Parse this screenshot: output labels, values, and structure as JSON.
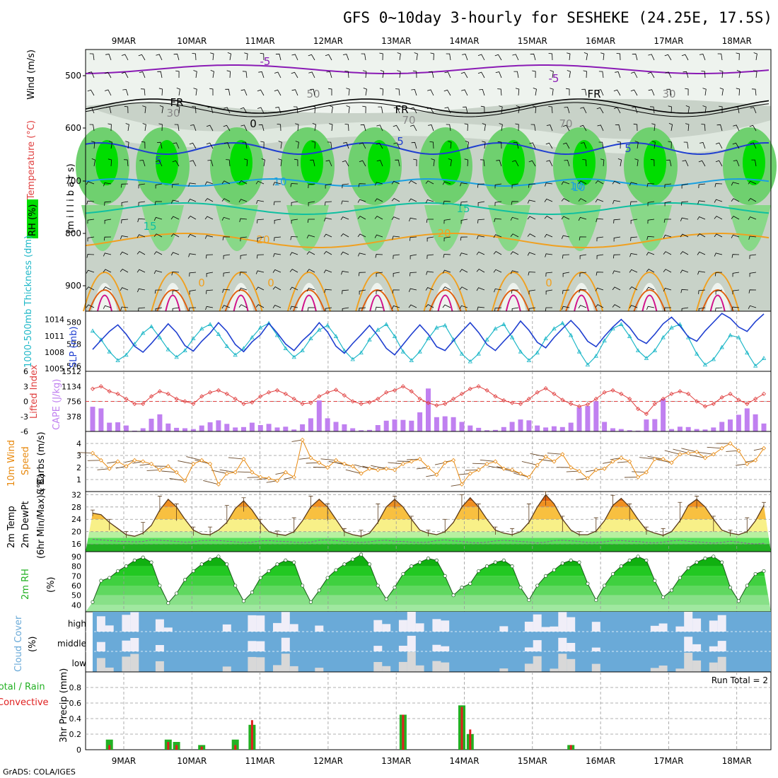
{
  "title": "GFS 0~10day 3-hourly for SESHEKE (24.25E, 17.5S)",
  "footer": "GrADS: COLA/IGES",
  "date_labels": [
    "9MAR",
    "10MAR",
    "11MAR",
    "12MAR",
    "13MAR",
    "14MAR",
    "15MAR",
    "16MAR",
    "17MAR",
    "18MAR"
  ],
  "colors": {
    "rh_green": "#00dd00",
    "rh_grey": "#c8d2c8",
    "slp": "#1f3fd0",
    "thickness": "#20b8c8",
    "lifted": "#e04040",
    "cape": "#c080f0",
    "wind_speed": "#e88a10",
    "temp_fill": "#f0a020",
    "cloud": "#6aaad8",
    "rain": "#e02020",
    "precip": "#22b022"
  },
  "panels": {
    "profile": {
      "labels": {
        "wind": "Wind (m/s)",
        "temperature": "Temperature (°C)",
        "rh": "RH (%)",
        "pressure": "(m i l l i b a r s)"
      },
      "y_ticks": [
        "500",
        "600",
        "700",
        "800",
        "900"
      ],
      "contour_labels": [
        "-5",
        "FR",
        "FR",
        "0",
        "5",
        "5",
        "10",
        "10",
        "15",
        "15",
        "20",
        "20",
        "-5",
        "FR",
        "5",
        "10",
        "0",
        "0",
        "0",
        "30",
        "50",
        "30",
        "70",
        "70"
      ]
    },
    "slp_thickness": {
      "labels": {
        "thickness": "1000-500mb Thickness (dm)",
        "slp": "SLP (mb)"
      },
      "left_ticks": [
        "580",
        "578",
        "576"
      ],
      "right_ticks": [
        "1014",
        "1011",
        "1008",
        "1005"
      ]
    },
    "lifted_cape": {
      "labels": {
        "lifted": "Lifted Index",
        "cape": "CAPE (J/kg)"
      },
      "left_ticks": [
        "-6",
        "-3",
        "0",
        "3",
        "6"
      ],
      "right_ticks": [
        "1512",
        "1134",
        "756",
        "378"
      ]
    },
    "wind10m": {
      "labels": {
        "title": "10m Wind",
        "speed": "Speed",
        "barbs": "& Barbs (m/s)"
      },
      "y_ticks": [
        "4",
        "3",
        "2",
        "1"
      ]
    },
    "temp2m": {
      "labels": {
        "temp": "2m Temp",
        "dewpt": "2m DewPt",
        "minmax": "(6hr Min/Max) (°C)"
      },
      "y_ticks": [
        "32",
        "28",
        "24",
        "20",
        "16"
      ]
    },
    "rh2m": {
      "labels": {
        "rh": "2m RH",
        "unit": "(%)"
      },
      "y_ticks": [
        "90",
        "80",
        "70",
        "60",
        "50",
        "40"
      ]
    },
    "cloud": {
      "labels": {
        "title": "Cloud Cover",
        "unit": "(%)"
      },
      "levels": [
        "high",
        "middle",
        "low"
      ]
    },
    "precip": {
      "labels": {
        "total": "Total / Rain",
        "convective": "Convective",
        "axis": "3hr Precip (mm)"
      },
      "y_ticks": [
        "0.8",
        "0.6",
        "0.4",
        "0.2",
        "0"
      ],
      "run_total": "Run Total = 2"
    }
  },
  "chart_data": [
    {
      "type": "line",
      "name": "SLP and 1000-500mb thickness",
      "ylabel": "SLP (mb)",
      "ylim": [
        1004,
        1016
      ],
      "series": [
        {
          "name": "SLP (mb)",
          "values": [
            1008.5,
            1010.2,
            1011.8,
            1013,
            1011.3,
            1009.1,
            1008,
            1009.6,
            1011.4,
            1013.2,
            1011.6,
            1009.2,
            1008.2,
            1010,
            1011.5,
            1013.4,
            1011.8,
            1009.4,
            1008.1,
            1009.9,
            1011.2,
            1013.3,
            1011.5,
            1009.5,
            1008.3,
            1010.1,
            1011.5,
            1013.4,
            1011.7,
            1009.1,
            1007.8,
            1009.6,
            1011.2,
            1012.9,
            1011,
            1008.7,
            1007.5,
            1009.4,
            1011.3,
            1013,
            1011.3,
            1009,
            1008.3,
            1010.1,
            1011.8,
            1013.4,
            1011.6,
            1009.4,
            1008.3,
            1010,
            1011.6,
            1013.7,
            1012,
            1009.8,
            1008.8,
            1010.7,
            1012.3,
            1013.8,
            1012.2,
            1010,
            1009,
            1010.9,
            1012.6,
            1014,
            1012.5,
            1010.4,
            1009.6,
            1011.3,
            1013.2,
            1014.4,
            1012.8,
            1010.8,
            1010,
            1011.9,
            1013.5,
            1015.1,
            1014.2,
            1012.6,
            1011.8,
            1013.6,
            1015
          ]
        },
        {
          "name": "1000-500mb Thickness (dm)",
          "values": [
            579.2,
            578.4,
            577.3,
            576.5,
            577,
            578,
            579,
            579.6,
            578.6,
            577.5,
            576.8,
            577.4,
            578.5,
            579.4,
            579.8,
            578.9,
            577.8,
            577,
            577.6,
            578.6,
            579.5,
            579.9,
            578.8,
            577.6,
            576.8,
            577.4,
            578.5,
            579.3,
            579.7,
            578.7,
            577.4,
            576.6,
            577.2,
            578.4,
            579.3,
            579.8,
            578.7,
            577.3,
            576.5,
            577.3,
            578.5,
            579.5,
            579.7,
            578.4,
            577.1,
            576.4,
            577.1,
            578.4,
            579.4,
            579.8,
            578.6,
            577.3,
            576.5,
            577.2,
            578.5,
            579.4,
            579.9,
            578.8,
            577.3,
            576.1,
            576.9,
            578.3,
            579.4,
            579.8,
            578.7,
            577.4,
            576.7,
            577.4,
            578.6,
            579.5,
            579.8,
            578.6,
            577.1,
            576.1,
            576.6,
            577.7,
            578.8,
            578.6,
            577.2,
            576,
            576.7
          ]
        }
      ]
    },
    {
      "type": "bar",
      "name": "Lifted index and CAPE",
      "ylabel": "CAPE (J/kg)",
      "ylim": [
        0,
        1512
      ],
      "series": [
        {
          "name": "CAPE (J/kg)",
          "values": [
            620,
            580,
            220,
            230,
            150,
            20,
            80,
            320,
            430,
            200,
            90,
            80,
            60,
            150,
            230,
            280,
            190,
            100,
            110,
            220,
            160,
            190,
            100,
            120,
            50,
            180,
            330,
            780,
            330,
            240,
            180,
            80,
            30,
            40,
            160,
            270,
            300,
            290,
            270,
            480,
            1080,
            360,
            380,
            360,
            240,
            150,
            90,
            30,
            40,
            110,
            240,
            300,
            280,
            150,
            100,
            130,
            110,
            220,
            610,
            640,
            760,
            240,
            80,
            60,
            30,
            20,
            300,
            310,
            820,
            60,
            120,
            110,
            60,
            50,
            100,
            240,
            300,
            420,
            580,
            430,
            200
          ]
        },
        {
          "name": "Lifted Index",
          "values": [
            -2.5,
            -3,
            -2,
            -1.5,
            -0.5,
            0.5,
            0.5,
            -1,
            -2,
            -1.5,
            -0.5,
            0,
            0.5,
            -1,
            -1.8,
            -2.2,
            -1.5,
            -0.5,
            0.5,
            0.2,
            -1,
            -1.8,
            -2.2,
            -1.5,
            -0.5,
            0.5,
            0.3,
            -1,
            -1.8,
            -2.3,
            -1.2,
            0,
            0.5,
            0.2,
            -0.5,
            -1.8,
            -2.2,
            -3,
            -2,
            -0.5,
            0.3,
            0.8,
            0.5,
            -0.5,
            -1.5,
            -2.5,
            -3,
            -2.2,
            -1,
            -0.2,
            0.3,
            0.5,
            -0.5,
            -1.8,
            -2.6,
            -1.5,
            -0.3,
            0.5,
            1,
            0.6,
            -0.5,
            -1.8,
            -2.2,
            -1.5,
            -0.5,
            1.5,
            2.5,
            0.5,
            -0.5,
            -1.5,
            -2,
            -1.5,
            0,
            1,
            0.5,
            -0.8,
            -1.5,
            -0.3,
            0.5,
            -0.5,
            -1.5
          ]
        }
      ]
    },
    {
      "type": "line",
      "name": "10m wind speed",
      "ylabel": "Speed (m/s)",
      "ylim": [
        0,
        5
      ],
      "series": [
        {
          "name": "Speed",
          "values": [
            3.2,
            2.6,
            1.9,
            2.5,
            2.1,
            2.6,
            2.5,
            2.3,
            1.8,
            2.1,
            1.6,
            0.9,
            2.3,
            2.6,
            2.3,
            0.6,
            1.5,
            1.6,
            2.7,
            1.6,
            1.2,
            1.1,
            0.9,
            1.6,
            1.2,
            4.3,
            2.8,
            2.4,
            2.0,
            2.6,
            2.3,
            2.1,
            1.5,
            1.9,
            1.8,
            1.9,
            1.8,
            2.3,
            2.5,
            2.7,
            2.0,
            1.4,
            2.4,
            2.6,
            0.6,
            1.5,
            1.8,
            2.3,
            2.5,
            1.9,
            1.8,
            1.5,
            1.2,
            2.2,
            2.9,
            2.5,
            3.1,
            2.0,
            1.7,
            1.1,
            1.8,
            1.9,
            2.5,
            2.8,
            2.5,
            1.2,
            1.6,
            2.7,
            2.7,
            2.4,
            3.1,
            3.2,
            3.3,
            2.8,
            3.1,
            3.6,
            4.0,
            3.4,
            2.3,
            2.6,
            3.6
          ]
        }
      ]
    },
    {
      "type": "area",
      "name": "2m temperature",
      "ylabel": "(°C)",
      "ylim": [
        14,
        33
      ],
      "series": [
        {
          "name": "2m Temp",
          "values": [
            26,
            25.5,
            23,
            21,
            19,
            18.5,
            19.5,
            22,
            27,
            30.5,
            28,
            24,
            20.5,
            19.2,
            19,
            20.5,
            23,
            27.5,
            30,
            27,
            23,
            20,
            19.2,
            18.8,
            20,
            23.5,
            28,
            30.5,
            28,
            24,
            20,
            19,
            18.5,
            19.5,
            23,
            28,
            30.5,
            28,
            24,
            20.5,
            19.5,
            19,
            20,
            23,
            28,
            31,
            28,
            24,
            20.5,
            19.5,
            19,
            20,
            23,
            28,
            32,
            29,
            24,
            20.5,
            19,
            19,
            20.2,
            23.5,
            28.5,
            30.8,
            28,
            24,
            20.5,
            19.5,
            18.8,
            20,
            23.5,
            28.5,
            30.5,
            28,
            24,
            20.5,
            19.5,
            19,
            20,
            23.5,
            28.5
          ]
        },
        {
          "name": "2m DewPt",
          "values": [
            17.5,
            17.3,
            17.1,
            16.9,
            16.8,
            16.7,
            16.8,
            17.3,
            17.2,
            17,
            16.8,
            16.6,
            16.7,
            17.1,
            17.2,
            17.1,
            16.9,
            16.7,
            16.5,
            16.6,
            17,
            17.1,
            16.9,
            16.8,
            16.6,
            16.5,
            16.6,
            17.2,
            17.3,
            17.1,
            16.8,
            16.6,
            16.5,
            16.7,
            17.1,
            17.2,
            16.9,
            16.8,
            16.6,
            16.5,
            16.6,
            17.1,
            17.3,
            17,
            16.8,
            16.5,
            16.4,
            16.6,
            17,
            17.2,
            17,
            16.8,
            16.6,
            16.4,
            16.6,
            17.1,
            17.2,
            17,
            16.8,
            16.5,
            16.5,
            16.7,
            17.1,
            17.1,
            16.9,
            16.8,
            16.5,
            16.4,
            16.6,
            17,
            17.2,
            16.9,
            16.7,
            16.5,
            16.3,
            16.5,
            16.9,
            16.6,
            16.2,
            16,
            16.2
          ]
        }
      ]
    },
    {
      "type": "area",
      "name": "2m relative humidity",
      "ylabel": "(%)",
      "ylim": [
        35,
        95
      ],
      "series": [
        {
          "name": "2m RH",
          "values": [
            43,
            65,
            68,
            75,
            80,
            86,
            89,
            84,
            60,
            42,
            52,
            66,
            75,
            82,
            87,
            90,
            82,
            60,
            44,
            53,
            68,
            75,
            82,
            86,
            84,
            60,
            43,
            55,
            68,
            76,
            82,
            87,
            92,
            82,
            60,
            46,
            58,
            72,
            80,
            84,
            88,
            86,
            70,
            50,
            58,
            62,
            75,
            80,
            84,
            86,
            80,
            58,
            45,
            60,
            70,
            76,
            83,
            86,
            84,
            62,
            45,
            60,
            72,
            80,
            86,
            90,
            86,
            65,
            48,
            55,
            68,
            78,
            84,
            88,
            90,
            84,
            58,
            44,
            60,
            72,
            75
          ]
        }
      ]
    },
    {
      "type": "bar",
      "name": "3hr precipitation",
      "ylabel": "3hr Precip (mm)",
      "ylim": [
        0,
        1
      ],
      "series": [
        {
          "name": "Total / Rain",
          "values": [
            0,
            0,
            0.13,
            0,
            0,
            0,
            0,
            0,
            0,
            0.13,
            0.1,
            0,
            0,
            0.06,
            0,
            0,
            0,
            0.13,
            0,
            0.32,
            0,
            0,
            0,
            0,
            0,
            0,
            0,
            0,
            0,
            0,
            0,
            0,
            0,
            0,
            0,
            0,
            0,
            0.45,
            0,
            0,
            0,
            0,
            0,
            0,
            0.57,
            0.2,
            0,
            0,
            0,
            0,
            0,
            0,
            0,
            0,
            0,
            0,
            0,
            0.06,
            0,
            0,
            0,
            0,
            0,
            0,
            0,
            0,
            0,
            0,
            0,
            0,
            0,
            0,
            0,
            0,
            0,
            0,
            0,
            0,
            0,
            0,
            0
          ]
        },
        {
          "name": "Convective",
          "values": [
            0,
            0,
            0.06,
            0,
            0,
            0,
            0,
            0,
            0,
            0.1,
            0.06,
            0,
            0,
            0.04,
            0,
            0,
            0,
            0.06,
            0,
            0.38,
            0,
            0,
            0,
            0,
            0,
            0,
            0,
            0,
            0,
            0,
            0,
            0,
            0,
            0,
            0,
            0,
            0,
            0.45,
            0,
            0,
            0,
            0,
            0,
            0,
            0.55,
            0.26,
            0,
            0,
            0,
            0,
            0,
            0,
            0,
            0,
            0,
            0,
            0,
            0.06,
            0,
            0,
            0,
            0,
            0,
            0,
            0,
            0,
            0,
            0,
            0,
            0,
            0,
            0,
            0,
            0,
            0,
            0,
            0,
            0,
            0,
            0,
            0
          ]
        }
      ]
    }
  ]
}
